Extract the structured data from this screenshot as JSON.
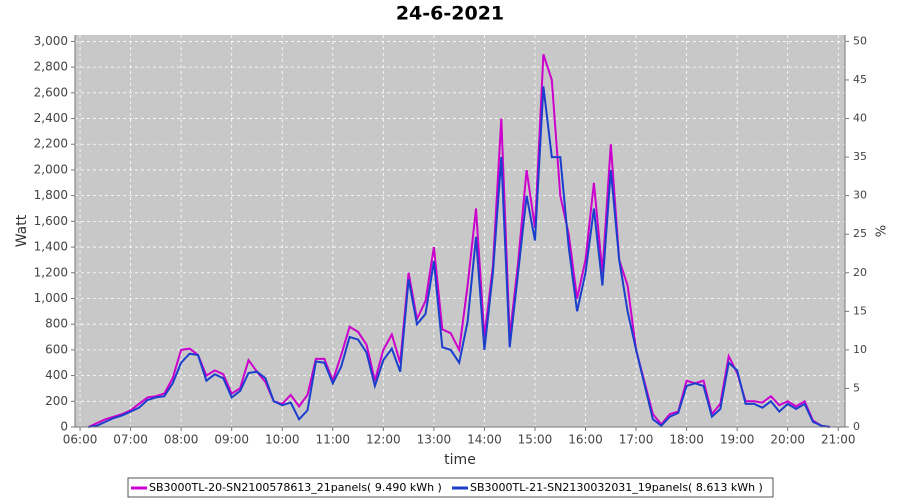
{
  "chart_data": {
    "type": "line",
    "title": "24-6-2021",
    "xlabel": "time",
    "ylabel": "Watt",
    "y2label": "%",
    "x": [
      370,
      380,
      390,
      400,
      410,
      420,
      430,
      440,
      450,
      460,
      470,
      480,
      490,
      500,
      510,
      520,
      530,
      540,
      550,
      560,
      570,
      580,
      590,
      600,
      610,
      620,
      630,
      640,
      650,
      660,
      670,
      680,
      690,
      700,
      710,
      720,
      730,
      740,
      750,
      760,
      770,
      780,
      790,
      800,
      810,
      820,
      830,
      840,
      850,
      860,
      870,
      880,
      890,
      900,
      910,
      920,
      930,
      940,
      950,
      960,
      970,
      980,
      990,
      1000,
      1010,
      1020,
      1030,
      1040,
      1050,
      1060,
      1070,
      1080,
      1090,
      1100,
      1110,
      1120,
      1130,
      1140,
      1150,
      1160,
      1170,
      1180,
      1190,
      1200,
      1210,
      1220,
      1230,
      1240,
      1250
    ],
    "series": [
      {
        "name": "SB3000TL-20-SN2100578613_21panels( 9.490 kWh )",
        "color": "#cc00cc",
        "values": [
          0,
          30,
          60,
          80,
          100,
          130,
          180,
          230,
          240,
          260,
          380,
          600,
          610,
          560,
          400,
          440,
          410,
          260,
          300,
          520,
          430,
          350,
          200,
          180,
          250,
          160,
          250,
          530,
          530,
          360,
          560,
          780,
          740,
          640,
          360,
          600,
          720,
          500,
          1200,
          840,
          980,
          1400,
          760,
          730,
          600,
          1100,
          1700,
          700,
          1250,
          2400,
          700,
          1280,
          2000,
          1550,
          2900,
          2700,
          1800,
          1500,
          1000,
          1300,
          1900,
          1200,
          2200,
          1300,
          1100,
          600,
          350,
          100,
          20,
          100,
          120,
          360,
          340,
          360,
          100,
          180,
          550,
          420,
          200,
          200,
          190,
          240,
          170,
          200,
          160,
          200,
          50,
          10,
          0
        ]
      },
      {
        "name": "SB3000TL-21-SN2130032031_19panels( 8.613 kWh )",
        "color": "#1a3fcc",
        "values": [
          0,
          10,
          40,
          70,
          90,
          120,
          150,
          210,
          230,
          240,
          340,
          500,
          570,
          560,
          360,
          410,
          380,
          230,
          280,
          420,
          430,
          380,
          200,
          170,
          190,
          60,
          130,
          510,
          500,
          340,
          470,
          700,
          680,
          580,
          320,
          520,
          610,
          430,
          1150,
          800,
          880,
          1290,
          620,
          600,
          500,
          820,
          1480,
          600,
          1200,
          2100,
          620,
          1200,
          1800,
          1450,
          2650,
          2100,
          2100,
          1400,
          900,
          1200,
          1700,
          1100,
          2000,
          1300,
          900,
          600,
          330,
          60,
          10,
          80,
          110,
          320,
          340,
          320,
          80,
          140,
          500,
          440,
          180,
          180,
          150,
          200,
          120,
          180,
          140,
          180,
          40,
          10,
          0
        ]
      }
    ],
    "xlim": [
      354,
      1268
    ],
    "xticks": [
      {
        "value": 360,
        "label": "06:00"
      },
      {
        "value": 420,
        "label": "07:00"
      },
      {
        "value": 480,
        "label": "08:00"
      },
      {
        "value": 540,
        "label": "09:00"
      },
      {
        "value": 600,
        "label": "10:00"
      },
      {
        "value": 660,
        "label": "11:00"
      },
      {
        "value": 720,
        "label": "12:00"
      },
      {
        "value": 780,
        "label": "13:00"
      },
      {
        "value": 840,
        "label": "14:00"
      },
      {
        "value": 900,
        "label": "15:00"
      },
      {
        "value": 960,
        "label": "16:00"
      },
      {
        "value": 1020,
        "label": "17:00"
      },
      {
        "value": 1080,
        "label": "18:00"
      },
      {
        "value": 1140,
        "label": "19:00"
      },
      {
        "value": 1200,
        "label": "20:00"
      },
      {
        "value": 1260,
        "label": "21:00"
      }
    ],
    "ylim": [
      0,
      3050
    ],
    "yticks": [
      0,
      200,
      400,
      600,
      800,
      {
        "value": 1000,
        "label": "1,000"
      },
      {
        "value": 1200,
        "label": "1,200"
      },
      {
        "value": 1400,
        "label": "1,400"
      },
      {
        "value": 1600,
        "label": "1,600"
      },
      {
        "value": 1800,
        "label": "1,800"
      },
      {
        "value": 2000,
        "label": "2,000"
      },
      {
        "value": 2200,
        "label": "2,200"
      },
      {
        "value": 2400,
        "label": "2,400"
      },
      {
        "value": 2600,
        "label": "2,600"
      },
      {
        "value": 2800,
        "label": "2,800"
      },
      {
        "value": 3000,
        "label": "3,000"
      }
    ],
    "y2lim": [
      0,
      50.83
    ],
    "y2ticks": [
      0,
      5,
      10,
      15,
      20,
      25,
      30,
      35,
      40,
      45,
      50
    ],
    "grid": true
  }
}
